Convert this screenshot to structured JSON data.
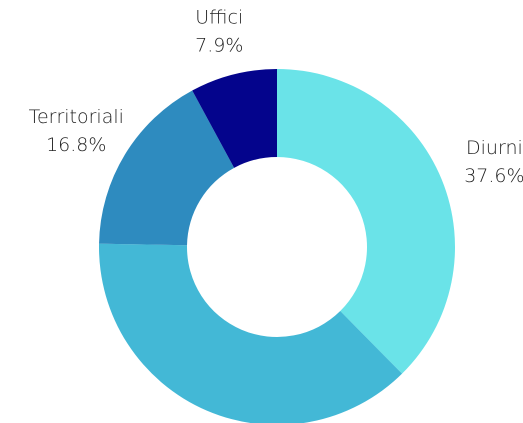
{
  "chart_data": {
    "type": "donut",
    "categories": [
      "Diurni",
      null,
      "Territoriali",
      "Uffici"
    ],
    "values": [
      37.6,
      37.7,
      16.8,
      7.9
    ],
    "value_labels": [
      "37.6%",
      null,
      "16.8%",
      "7.9%"
    ],
    "colors": [
      "#6ae3e8",
      "#43b8d6",
      "#2e8bbf",
      "#04048c"
    ]
  }
}
